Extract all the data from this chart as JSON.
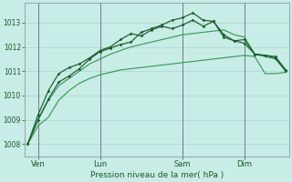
{
  "background_color": "#c8ece6",
  "grid_color": "#a8d8d0",
  "line_color_light": "#3a9a5c",
  "line_color_dark": "#1a5c2a",
  "xlabel": "Pression niveau de la mer( hPa )",
  "ylim": [
    1007.5,
    1013.8
  ],
  "yticks": [
    1008,
    1009,
    1010,
    1011,
    1012,
    1013
  ],
  "xtick_labels": [
    "Ven",
    "Lun",
    "Sam",
    "Dim"
  ],
  "xtick_positions": [
    1,
    7,
    15,
    21
  ],
  "total_points": 26,
  "vline_positions": [
    1,
    7,
    15,
    21
  ],
  "vline_color": "#777788",
  "series1_x": [
    0,
    1,
    2,
    3,
    4,
    5,
    6,
    7,
    8,
    9,
    10,
    11,
    12,
    13,
    14,
    15,
    16,
    17,
    18,
    19,
    20,
    21,
    22,
    23,
    24,
    25
  ],
  "series1": [
    1008.0,
    1009.0,
    1009.8,
    1010.4,
    1010.7,
    1011.0,
    1011.3,
    1011.5,
    1011.7,
    1011.85,
    1012.0,
    1012.1,
    1012.2,
    1012.3,
    1012.4,
    1012.5,
    1012.55,
    1012.6,
    1012.65,
    1012.7,
    1012.5,
    1012.4,
    1011.7,
    1011.6,
    1011.5,
    1011.0
  ],
  "series2": [
    1008.0,
    1009.2,
    1010.2,
    1010.9,
    1011.15,
    1011.3,
    1011.55,
    1011.85,
    1012.0,
    1012.3,
    1012.55,
    1012.45,
    1012.7,
    1012.85,
    1012.75,
    1012.9,
    1013.1,
    1012.85,
    1013.05,
    1012.5,
    1012.25,
    1012.3,
    1011.7,
    1011.65,
    1011.55,
    1011.0
  ],
  "series3": [
    1008.0,
    1009.0,
    1009.85,
    1010.55,
    1010.8,
    1011.1,
    1011.5,
    1011.8,
    1011.95,
    1012.1,
    1012.2,
    1012.6,
    1012.75,
    1012.9,
    1013.1,
    1013.2,
    1013.4,
    1013.1,
    1013.05,
    1012.4,
    1012.25,
    1012.15,
    1011.7,
    1011.65,
    1011.6,
    1011.05
  ],
  "series4": [
    1008.0,
    1008.75,
    1009.1,
    1009.8,
    1010.2,
    1010.5,
    1010.7,
    1010.85,
    1010.95,
    1011.05,
    1011.1,
    1011.15,
    1011.2,
    1011.25,
    1011.3,
    1011.35,
    1011.4,
    1011.45,
    1011.5,
    1011.55,
    1011.6,
    1011.65,
    1011.6,
    1010.9,
    1010.9,
    1010.95
  ]
}
